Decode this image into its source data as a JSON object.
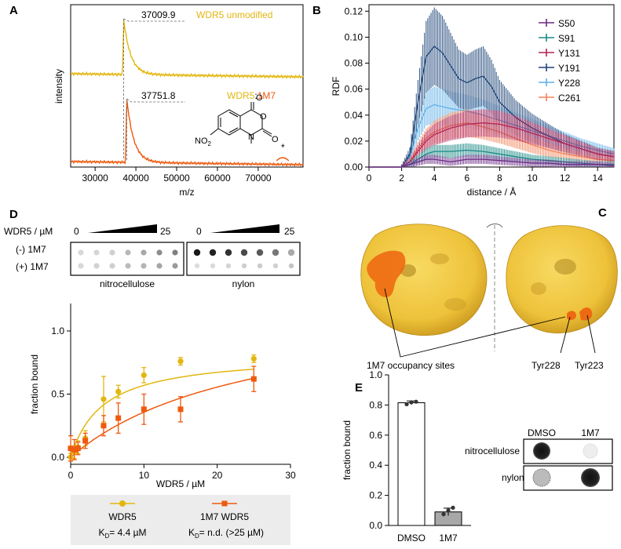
{
  "panels": {
    "A": "A",
    "B": "B",
    "C": "C",
    "D": "D",
    "E": "E"
  },
  "colors": {
    "wdr5": "#e3b60f",
    "m7": "#ee5a0f",
    "surface": "#f0c53c",
    "surface_dark": "#c99a1a",
    "gray_bar": "#a8a8a8",
    "legend_box": "#ececec"
  },
  "chart_data": [
    {
      "id": "A",
      "type": "line",
      "title": "",
      "xlabel": "m/z",
      "ylabel": "intensity",
      "xlim": [
        24000,
        81000
      ],
      "xticks": [
        30000,
        40000,
        50000,
        60000,
        70000
      ],
      "xtick_labels": [
        "30000",
        "40000",
        "50000",
        "60000",
        "70000"
      ],
      "series": [
        {
          "name": "WDR5 unmodified",
          "peak_x": 37009.9,
          "peak_label": "37009.9"
        },
        {
          "name": "WDR5:1M7",
          "peak_x": 37751.8,
          "peak_label": "37751.8"
        }
      ],
      "label_top": "WDR5 unmodified",
      "label_bottom_a": "WDR5",
      "label_bottom_sep": ":",
      "label_bottom_b": "1M7",
      "annotation_star": "*",
      "molecule_no2": "NO",
      "molecule_no2_sub": "2"
    },
    {
      "id": "B",
      "type": "line",
      "xlabel": "distance / Å",
      "ylabel": "RDF",
      "xlim": [
        0,
        15
      ],
      "ylim": [
        0,
        0.125
      ],
      "xticks": [
        0,
        2,
        4,
        6,
        8,
        10,
        12,
        14
      ],
      "xtick_labels": [
        "0",
        "2",
        "4",
        "6",
        "8",
        "10",
        "12",
        "14"
      ],
      "yticks": [
        0,
        0.02,
        0.04,
        0.06,
        0.08,
        0.1,
        0.12
      ],
      "ytick_labels": [
        "0.00",
        "0.02",
        "0.04",
        "0.06",
        "0.08",
        "0.10",
        "0.12"
      ],
      "series": [
        {
          "name": "S50",
          "color": "#6b2a86",
          "x": [
            0,
            2,
            2.5,
            3,
            3.5,
            4,
            5,
            6,
            7,
            8,
            9,
            10,
            11,
            12,
            13,
            14,
            15
          ],
          "y": [
            0,
            0,
            0.002,
            0.004,
            0.006,
            0.006,
            0.004,
            0.006,
            0.006,
            0.005,
            0.004,
            0.003,
            0.003,
            0.002,
            0.002,
            0.002,
            0.001
          ]
        },
        {
          "name": "S91",
          "color": "#1a8a86",
          "x": [
            0,
            2,
            2.5,
            3,
            3.5,
            4,
            5,
            6,
            7,
            8,
            9,
            10,
            11,
            12,
            13,
            14,
            15
          ],
          "y": [
            0,
            0,
            0.002,
            0.006,
            0.01,
            0.012,
            0.012,
            0.013,
            0.012,
            0.01,
            0.008,
            0.006,
            0.005,
            0.004,
            0.003,
            0.002,
            0.002
          ]
        },
        {
          "name": "Y131",
          "color": "#b42456",
          "x": [
            0,
            2,
            2.5,
            3,
            3.5,
            4,
            5,
            6,
            7,
            8,
            9,
            10,
            11,
            12,
            13,
            14,
            15
          ],
          "y": [
            0,
            0,
            0.004,
            0.012,
            0.02,
            0.025,
            0.03,
            0.033,
            0.034,
            0.033,
            0.03,
            0.026,
            0.022,
            0.018,
            0.014,
            0.01,
            0.008
          ]
        },
        {
          "name": "Y191",
          "color": "#1d4478",
          "x": [
            0,
            2,
            2.5,
            3,
            3.5,
            4,
            4.5,
            5,
            5.5,
            6,
            6.5,
            7,
            7.5,
            8,
            9,
            10,
            11,
            12,
            13,
            14,
            15
          ],
          "y": [
            0,
            0,
            0.01,
            0.05,
            0.085,
            0.093,
            0.088,
            0.078,
            0.068,
            0.065,
            0.068,
            0.07,
            0.062,
            0.05,
            0.038,
            0.03,
            0.024,
            0.018,
            0.014,
            0.01,
            0.008
          ]
        },
        {
          "name": "Y228",
          "color": "#5fb0e8",
          "x": [
            0,
            2,
            2.5,
            3,
            3.5,
            4,
            5,
            6,
            7,
            8,
            9,
            10,
            11,
            12,
            13,
            14,
            15
          ],
          "y": [
            0,
            0,
            0.008,
            0.03,
            0.045,
            0.048,
            0.045,
            0.043,
            0.04,
            0.036,
            0.032,
            0.028,
            0.024,
            0.02,
            0.016,
            0.013,
            0.01
          ]
        },
        {
          "name": "C261",
          "color": "#f3845a",
          "x": [
            0,
            2,
            2.5,
            3,
            3.5,
            4,
            5,
            6,
            7,
            8,
            9,
            10,
            11,
            12,
            13,
            14,
            15
          ],
          "y": [
            0,
            0,
            0.004,
            0.014,
            0.022,
            0.027,
            0.032,
            0.034,
            0.031,
            0.027,
            0.022,
            0.017,
            0.013,
            0.01,
            0.008,
            0.006,
            0.005
          ]
        }
      ]
    },
    {
      "id": "D",
      "type": "scatter",
      "xlabel": "WDR5 / µM",
      "ylabel": "fraction bound",
      "xlim": [
        0,
        30
      ],
      "ylim": [
        0,
        1.1
      ],
      "xticks": [
        0,
        10,
        20,
        30
      ],
      "xtick_labels": [
        "0",
        "10",
        "20",
        "30"
      ],
      "yticks": [
        0,
        0.5,
        1.0
      ],
      "ytick_labels": [
        "0.0",
        "0.5",
        "1.0"
      ],
      "series": [
        {
          "name": "WDR5",
          "kd_label": "= 4.4 µM",
          "kd": 4.4,
          "bmax": 0.82,
          "x": [
            0,
            0.5,
            1.0,
            2.0,
            4.5,
            6.5,
            10,
            15,
            25
          ],
          "y": [
            0.0,
            0.04,
            0.08,
            0.15,
            0.46,
            0.52,
            0.65,
            0.76,
            0.78
          ],
          "err": [
            0.03,
            0.05,
            0.05,
            0.06,
            0.18,
            0.05,
            0.06,
            0.03,
            0.03
          ]
        },
        {
          "name": "1M7 WDR5",
          "kd_label": "= n.d. (>25 µM)",
          "kd": 25,
          "bmax": 1.25,
          "x": [
            0,
            0.5,
            1.0,
            2.0,
            4.5,
            6.5,
            10,
            15,
            25
          ],
          "y": [
            0.07,
            0.06,
            0.07,
            0.13,
            0.25,
            0.31,
            0.38,
            0.38,
            0.62
          ],
          "err": [
            0.1,
            0.08,
            0.05,
            0.06,
            0.08,
            0.12,
            0.12,
            0.1,
            0.1
          ]
        }
      ],
      "legend_kd_symbol": "K",
      "legend_kd_sub": "D"
    },
    {
      "id": "E",
      "type": "bar",
      "categories": [
        "DMSO",
        "1M7"
      ],
      "values": [
        0.815,
        0.09
      ],
      "points": [
        [
          0.805,
          0.818,
          0.822
        ],
        [
          0.075,
          0.1,
          0.118
        ]
      ],
      "error": [
        0.012,
        0.025
      ],
      "ylabel": "fraction bound",
      "ylim": [
        0,
        1.0
      ],
      "yticks": [
        0,
        0.2,
        0.4,
        0.6,
        0.8,
        1.0
      ],
      "ytick_labels": [
        "0.0",
        "0.2",
        "0.4",
        "0.6",
        "0.8",
        "1.0"
      ]
    }
  ],
  "blot_D": {
    "conc_label": "WDR5 / µM",
    "start": "0",
    "end": "25",
    "row_minus": "(-) 1M7",
    "row_plus": "(+) 1M7",
    "membrane_left": "nitrocellulose",
    "membrane_right": "nylon"
  },
  "structure_C": {
    "occupancy_label": "1M7 occupancy sites",
    "residue_1": "Tyr228",
    "residue_2": "Tyr223"
  },
  "blot_E": {
    "col_1": "DMSO",
    "col_2": "1M7",
    "row_1": "nitrocellulose",
    "row_2": "nylon"
  }
}
